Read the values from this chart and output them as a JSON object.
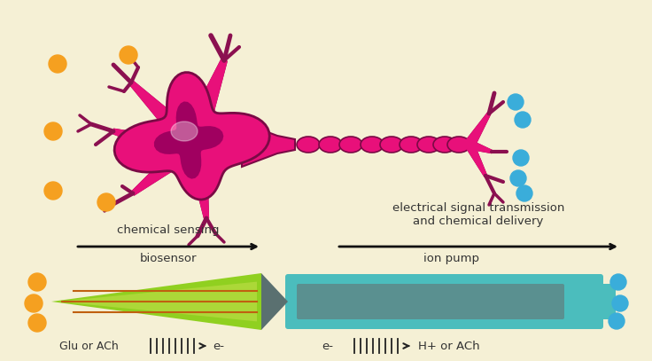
{
  "bg_color": "#f5f0d5",
  "neuron_color": "#e8107a",
  "neuron_dark": "#8b1050",
  "neuron_outline": "#7a0a45",
  "axon_color": "#e8107a",
  "axon_outline": "#8b1050",
  "orange_color": "#f5a020",
  "blue_color": "#3aadda",
  "green_light": "#90d020",
  "green_dark": "#70a010",
  "green_inner": "#c8e050",
  "orange_line": "#c06010",
  "teal_outer": "#4bbdbd",
  "teal_mid": "#3aadad",
  "teal_dark": "#5a9090",
  "gray_tri": "#5a7070",
  "arrow_color": "#111111",
  "text_color": "#333333",
  "label_chem": "chemical sensing",
  "label_elec": "electrical signal transmission\nand chemical delivery",
  "label_bio": "biosensor",
  "label_ion": "ion pump",
  "label_glu": "Glu or ACh",
  "label_eminus1": "e-",
  "label_eminus2": "e-",
  "label_hplus": "H+ or ACh"
}
